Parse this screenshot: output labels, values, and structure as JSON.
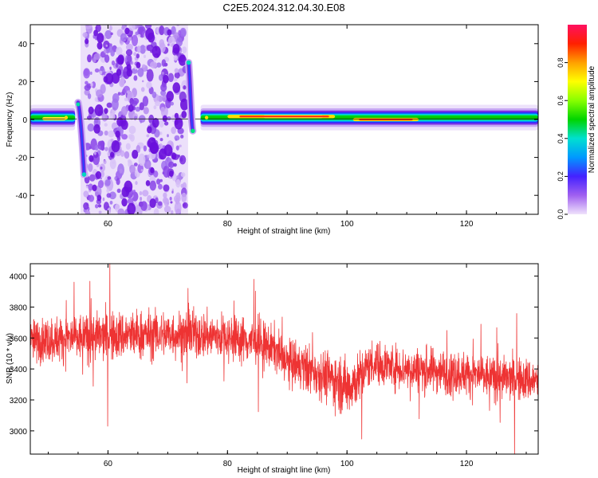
{
  "chart_data": [
    {
      "type": "heatmap",
      "title": "C2E5.2024.312.04.30.E08",
      "xlabel": "Height of straight line (km)",
      "ylabel": "Frequency (Hz)",
      "xlim": [
        47,
        132
      ],
      "ylim": [
        -50,
        50
      ],
      "xticks": [
        60,
        80,
        100,
        120
      ],
      "yticks": [
        -40,
        -20,
        0,
        20,
        40
      ],
      "colorbar": {
        "label": "Normalized spectral amplitude",
        "range": [
          0,
          1
        ],
        "ticks": [
          0.0,
          0.2,
          0.4,
          0.6,
          0.8
        ],
        "colormap": [
          "#e6d6f8",
          "#8a2be2",
          "#3333ff",
          "#00bfff",
          "#00e5c0",
          "#00d400",
          "#88ff00",
          "#ffff00",
          "#ffa000",
          "#ff2000",
          "#ff1060"
        ]
      },
      "features": {
        "main_ridge_center_hz": 1,
        "noise_band_km": [
          56,
          73
        ],
        "spike_low_at_km": 56,
        "spike_low_hz": -29,
        "spike_high_at_km": 73.5,
        "spike_high_hz": 30
      }
    },
    {
      "type": "line",
      "xlabel": "Height of straight line (km)",
      "ylabel": "SNR (10 * v/v)",
      "xlim": [
        47,
        132
      ],
      "ylim": [
        2850,
        4080
      ],
      "xticks": [
        60,
        80,
        100,
        120
      ],
      "yticks": [
        3000,
        3200,
        3400,
        3600,
        3800,
        4000
      ],
      "color": "#ee3333",
      "series": [
        {
          "name": "SNR",
          "x": [
            47,
            50,
            55,
            60,
            65,
            70,
            75,
            80,
            85,
            88,
            90,
            95,
            98,
            100,
            102,
            104,
            106,
            110,
            115,
            120,
            125,
            130,
            132
          ],
          "mean": [
            3580,
            3590,
            3600,
            3610,
            3620,
            3625,
            3620,
            3610,
            3570,
            3530,
            3440,
            3380,
            3330,
            3280,
            3340,
            3440,
            3430,
            3400,
            3390,
            3370,
            3340,
            3330,
            3320
          ],
          "spread": [
            110,
            115,
            120,
            125,
            125,
            120,
            120,
            115,
            120,
            110,
            120,
            120,
            140,
            150,
            130,
            110,
            110,
            110,
            110,
            110,
            110,
            110,
            110
          ]
        }
      ]
    }
  ]
}
